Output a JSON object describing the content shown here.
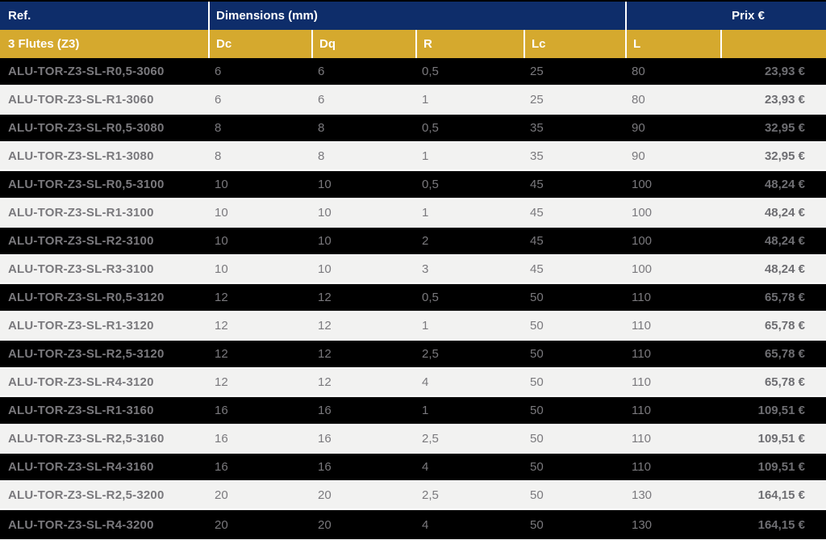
{
  "table": {
    "header": {
      "ref_label": "Ref.",
      "dimensions_label": "Dimensions (mm)",
      "prix_label": "Prix €",
      "group_label": "3 Flutes (Z3)",
      "columns": [
        "Dc",
        "Dq",
        "R",
        "Lc",
        "L"
      ]
    },
    "rows": [
      {
        "ref": "ALU-TOR-Z3-SL-R0,5-3060",
        "dc": "6",
        "dq": "6",
        "r": "0,5",
        "lc": "25",
        "l": "80",
        "prix": "23,93 €"
      },
      {
        "ref": "ALU-TOR-Z3-SL-R1-3060",
        "dc": "6",
        "dq": "6",
        "r": "1",
        "lc": "25",
        "l": "80",
        "prix": "23,93 €"
      },
      {
        "ref": "ALU-TOR-Z3-SL-R0,5-3080",
        "dc": "8",
        "dq": "8",
        "r": "0,5",
        "lc": "35",
        "l": "90",
        "prix": "32,95 €"
      },
      {
        "ref": "ALU-TOR-Z3-SL-R1-3080",
        "dc": "8",
        "dq": "8",
        "r": "1",
        "lc": "35",
        "l": "90",
        "prix": "32,95 €"
      },
      {
        "ref": "ALU-TOR-Z3-SL-R0,5-3100",
        "dc": "10",
        "dq": "10",
        "r": "0,5",
        "lc": "45",
        "l": "100",
        "prix": "48,24 €"
      },
      {
        "ref": "ALU-TOR-Z3-SL-R1-3100",
        "dc": "10",
        "dq": "10",
        "r": "1",
        "lc": "45",
        "l": "100",
        "prix": "48,24 €"
      },
      {
        "ref": "ALU-TOR-Z3-SL-R2-3100",
        "dc": "10",
        "dq": "10",
        "r": "2",
        "lc": "45",
        "l": "100",
        "prix": "48,24 €"
      },
      {
        "ref": "ALU-TOR-Z3-SL-R3-3100",
        "dc": "10",
        "dq": "10",
        "r": "3",
        "lc": "45",
        "l": "100",
        "prix": "48,24 €"
      },
      {
        "ref": "ALU-TOR-Z3-SL-R0,5-3120",
        "dc": "12",
        "dq": "12",
        "r": "0,5",
        "lc": "50",
        "l": "110",
        "prix": "65,78 €"
      },
      {
        "ref": "ALU-TOR-Z3-SL-R1-3120",
        "dc": "12",
        "dq": "12",
        "r": "1",
        "lc": "50",
        "l": "110",
        "prix": "65,78 €"
      },
      {
        "ref": "ALU-TOR-Z3-SL-R2,5-3120",
        "dc": "12",
        "dq": "12",
        "r": "2,5",
        "lc": "50",
        "l": "110",
        "prix": "65,78 €"
      },
      {
        "ref": "ALU-TOR-Z3-SL-R4-3120",
        "dc": "12",
        "dq": "12",
        "r": "4",
        "lc": "50",
        "l": "110",
        "prix": "65,78 €"
      },
      {
        "ref": "ALU-TOR-Z3-SL-R1-3160",
        "dc": "16",
        "dq": "16",
        "r": "1",
        "lc": "50",
        "l": "110",
        "prix": "109,51 €"
      },
      {
        "ref": "ALU-TOR-Z3-SL-R2,5-3160",
        "dc": "16",
        "dq": "16",
        "r": "2,5",
        "lc": "50",
        "l": "110",
        "prix": "109,51 €"
      },
      {
        "ref": "ALU-TOR-Z3-SL-R4-3160",
        "dc": "16",
        "dq": "16",
        "r": "4",
        "lc": "50",
        "l": "110",
        "prix": "109,51 €"
      },
      {
        "ref": "ALU-TOR-Z3-SL-R2,5-3200",
        "dc": "20",
        "dq": "20",
        "r": "2,5",
        "lc": "50",
        "l": "130",
        "prix": "164,15 €"
      },
      {
        "ref": "ALU-TOR-Z3-SL-R4-3200",
        "dc": "20",
        "dq": "20",
        "r": "4",
        "lc": "50",
        "l": "130",
        "prix": "164,15 €"
      }
    ],
    "colors": {
      "navy": "#0e2d6a",
      "gold": "#d5a92e",
      "row_dark": "#000000",
      "row_light": "#f2f2f1",
      "text_gray": "#7a797d",
      "price_gray": "#6e6e72"
    }
  }
}
